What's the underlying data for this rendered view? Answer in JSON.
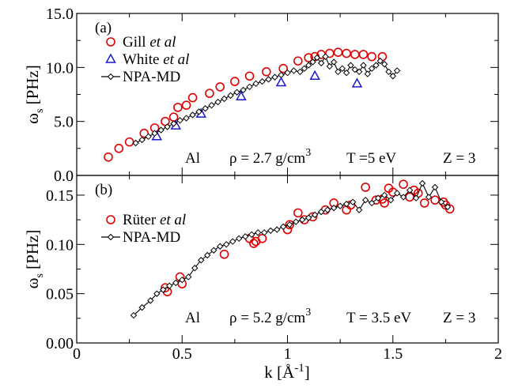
{
  "chart_data": [
    {
      "panel": "(a)",
      "type": "scatter",
      "xlim": [
        0,
        2
      ],
      "ylim": [
        0,
        15
      ],
      "xticks": [],
      "yticks": [
        "0.0",
        "5.0",
        "10.0",
        "15.0"
      ],
      "ylabel_main": "ω",
      "ylabel_sub": "s",
      "ylabel_unit": " [PHz]",
      "annotation": {
        "element": "Al",
        "rho": "ρ = 2.7 g/cm",
        "rho_sup": "3",
        "temp": "T =5 eV",
        "z": "Z = 3"
      },
      "series": [
        {
          "name": "Gill",
          "name_suffix": "et al",
          "marker": "circle",
          "color": "#e00000",
          "x": [
            0.15,
            0.2,
            0.25,
            0.32,
            0.37,
            0.42,
            0.46,
            0.48,
            0.52,
            0.55,
            0.63,
            0.68,
            0.75,
            0.82,
            0.9,
            0.98,
            1.05,
            1.1,
            1.13,
            1.16,
            1.2,
            1.24,
            1.28,
            1.32,
            1.36,
            1.4,
            1.45
          ],
          "y": [
            1.7,
            2.5,
            3.1,
            3.9,
            4.4,
            5.0,
            5.4,
            6.3,
            6.5,
            7.2,
            7.6,
            8.2,
            8.7,
            9.2,
            9.6,
            9.9,
            10.6,
            10.9,
            11.0,
            11.2,
            11.3,
            11.4,
            11.3,
            11.2,
            11.2,
            11.0,
            11.0
          ]
        },
        {
          "name": "White",
          "name_suffix": "et al",
          "marker": "triangle",
          "color": "#1a1acc",
          "x": [
            0.38,
            0.47,
            0.59,
            0.78,
            0.97,
            1.13,
            1.33
          ],
          "y": [
            3.6,
            4.6,
            5.7,
            7.3,
            8.6,
            9.2,
            8.5
          ]
        },
        {
          "name": "NPA-MD",
          "marker": "diamond-line",
          "color": "#000000",
          "x": [
            0.28,
            0.31,
            0.34,
            0.37,
            0.4,
            0.43,
            0.46,
            0.49,
            0.52,
            0.55,
            0.58,
            0.61,
            0.64,
            0.67,
            0.7,
            0.73,
            0.76,
            0.79,
            0.82,
            0.85,
            0.88,
            0.91,
            0.94,
            0.97,
            1.0,
            1.03,
            1.06,
            1.08,
            1.1,
            1.12,
            1.14,
            1.16,
            1.18,
            1.2,
            1.22,
            1.24,
            1.26,
            1.28,
            1.3,
            1.32,
            1.34,
            1.36,
            1.38,
            1.4,
            1.42,
            1.44,
            1.46,
            1.48,
            1.5,
            1.52
          ],
          "y": [
            3.0,
            3.3,
            3.6,
            3.9,
            4.2,
            4.5,
            4.8,
            5.1,
            5.3,
            5.6,
            5.9,
            6.2,
            6.5,
            6.8,
            7.1,
            7.4,
            7.7,
            7.9,
            8.2,
            8.5,
            8.7,
            8.9,
            9.1,
            9.3,
            9.5,
            9.7,
            9.6,
            9.9,
            10.2,
            10.5,
            10.9,
            10.4,
            11.0,
            10.1,
            10.5,
            9.6,
            9.9,
            9.5,
            10.2,
            9.8,
            9.6,
            10.2,
            9.4,
            9.9,
            10.2,
            10.6,
            10.3,
            9.6,
            9.2,
            9.7
          ]
        }
      ]
    },
    {
      "panel": "(b)",
      "type": "scatter",
      "xlim": [
        0,
        2
      ],
      "ylim": [
        0,
        0.17
      ],
      "xticks": [
        "0",
        "0.5",
        "1",
        "1.5",
        "2"
      ],
      "yticks": [
        "0.00",
        "0.05",
        "0.10",
        "0.15"
      ],
      "xlabel_main": "k [Å",
      "xlabel_sup": "-1",
      "xlabel_end": "]",
      "ylabel_main": "ω",
      "ylabel_sub": "s",
      "ylabel_unit": " [PHz]",
      "annotation": {
        "element": "Al",
        "rho": "ρ = 5.2 g/cm",
        "rho_sup": "3",
        "temp": "T = 3.5 eV",
        "z": "Z = 3"
      },
      "series": [
        {
          "name": "Rüter",
          "name_suffix": "et al",
          "marker": "circle",
          "color": "#e00000",
          "x": [
            0.42,
            0.43,
            0.49,
            0.5,
            0.7,
            0.82,
            0.84,
            0.85,
            0.88,
            1.0,
            1.01,
            1.05,
            1.08,
            1.12,
            1.18,
            1.22,
            1.28,
            1.3,
            1.37,
            1.42,
            1.45,
            1.46,
            1.48,
            1.5,
            1.55,
            1.58,
            1.6,
            1.62,
            1.65,
            1.7,
            1.74,
            1.75,
            1.77
          ],
          "y": [
            0.056,
            0.052,
            0.067,
            0.06,
            0.09,
            0.106,
            0.101,
            0.103,
            0.106,
            0.115,
            0.12,
            0.132,
            0.125,
            0.128,
            0.135,
            0.142,
            0.135,
            0.14,
            0.158,
            0.145,
            0.146,
            0.142,
            0.157,
            0.153,
            0.161,
            0.148,
            0.155,
            0.152,
            0.142,
            0.145,
            0.143,
            0.14,
            0.136
          ]
        },
        {
          "name": "NPA-MD",
          "marker": "diamond-line",
          "color": "#000000",
          "x": [
            0.27,
            0.31,
            0.35,
            0.38,
            0.41,
            0.44,
            0.47,
            0.5,
            0.53,
            0.56,
            0.59,
            0.62,
            0.65,
            0.68,
            0.71,
            0.74,
            0.77,
            0.8,
            0.83,
            0.86,
            0.89,
            0.92,
            0.95,
            0.98,
            1.01,
            1.04,
            1.07,
            1.1,
            1.13,
            1.16,
            1.19,
            1.22,
            1.25,
            1.28,
            1.31,
            1.34,
            1.37,
            1.4,
            1.43,
            1.46,
            1.49,
            1.52,
            1.55,
            1.58,
            1.61,
            1.64,
            1.67,
            1.7,
            1.73,
            1.76
          ],
          "y": [
            0.028,
            0.036,
            0.043,
            0.05,
            0.054,
            0.058,
            0.061,
            0.064,
            0.067,
            0.076,
            0.084,
            0.089,
            0.094,
            0.098,
            0.1,
            0.103,
            0.106,
            0.108,
            0.11,
            0.112,
            0.112,
            0.114,
            0.115,
            0.118,
            0.12,
            0.123,
            0.125,
            0.127,
            0.13,
            0.133,
            0.135,
            0.137,
            0.139,
            0.141,
            0.143,
            0.135,
            0.145,
            0.142,
            0.147,
            0.15,
            0.145,
            0.152,
            0.148,
            0.155,
            0.147,
            0.162,
            0.148,
            0.158,
            0.143,
            0.138
          ]
        }
      ]
    }
  ]
}
